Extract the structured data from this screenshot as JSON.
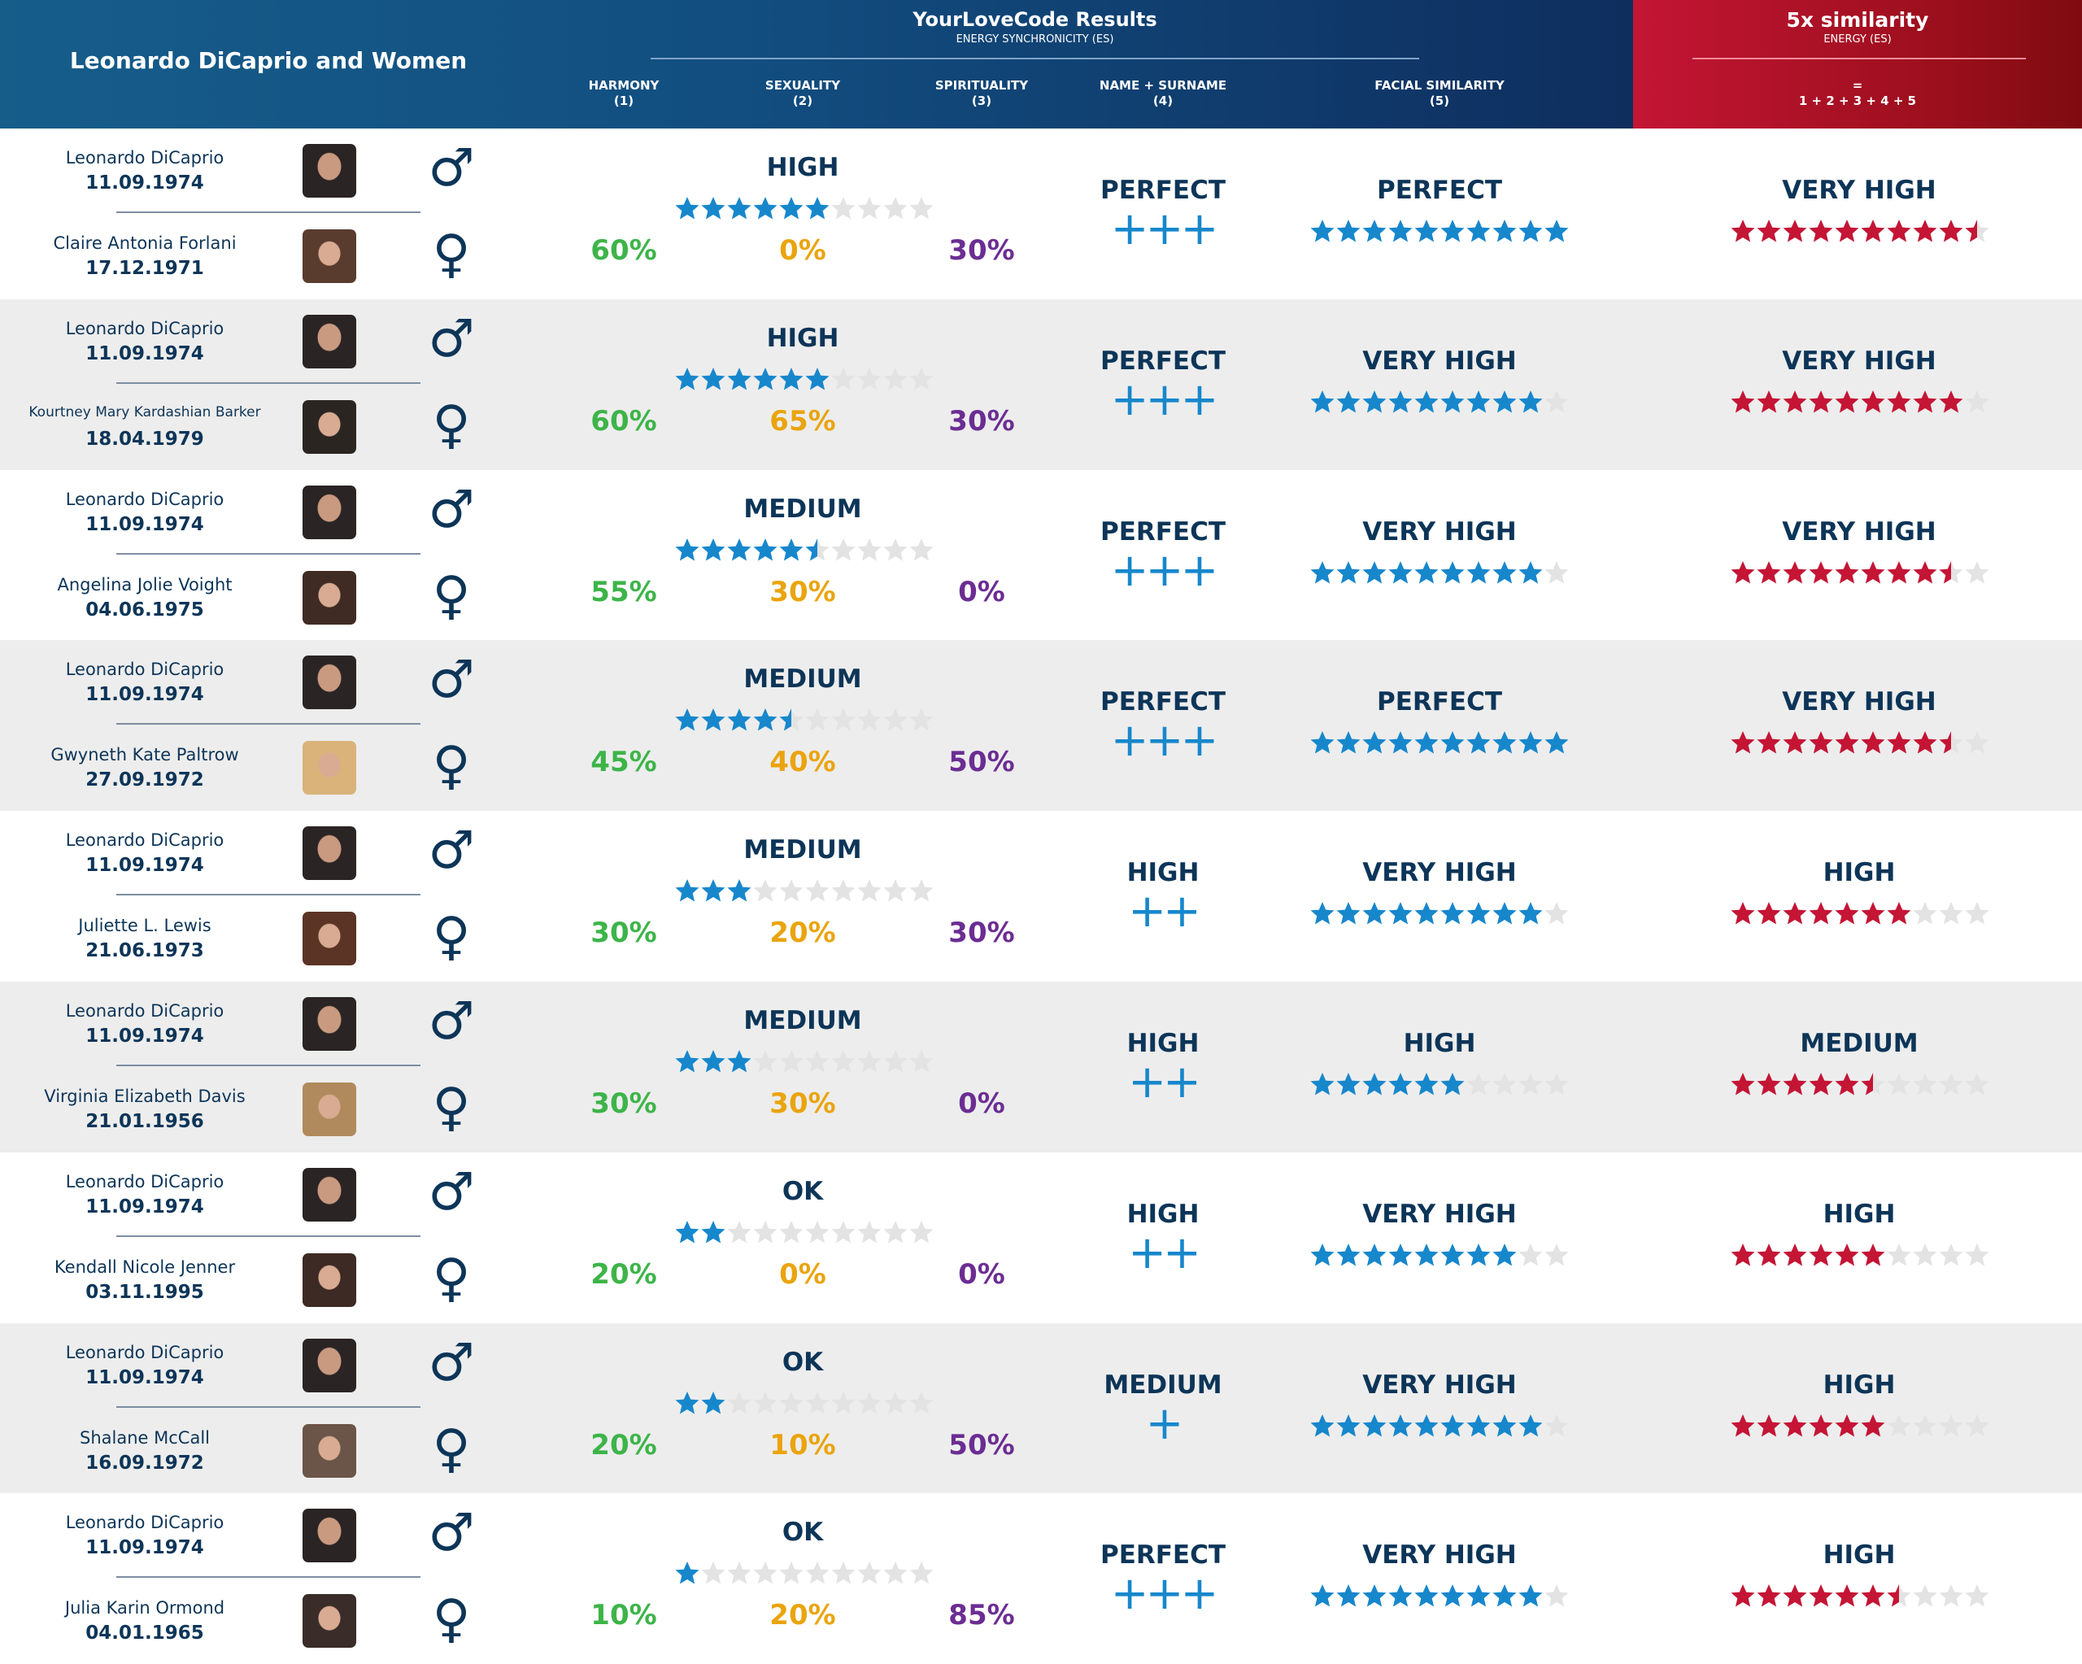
{
  "header": {
    "title": "Leonardo DiCaprio and Women",
    "results_title": "YourLoveCode Results",
    "results_subtitle": "ENERGY SYNCHRONICITY (ES)",
    "columns": [
      {
        "label": "HARMONY",
        "num": "(1)"
      },
      {
        "label": "SEXUALITY",
        "num": "(2)"
      },
      {
        "label": "SPIRITUALITY",
        "num": "(3)"
      },
      {
        "label": "NAME + SURNAME",
        "num": "(4)"
      },
      {
        "label": "FACIAL SIMILARITY",
        "num": "(5)"
      }
    ],
    "similarity_title": "5x similarity",
    "similarity_subtitle": "ENERGY (ES)",
    "similarity_eq": "=",
    "similarity_formula": "1 + 2 + 3 + 4 + 5"
  },
  "colors": {
    "header_blue": "#124e80",
    "header_red": "#b0122a",
    "navy_text": "#0d3558",
    "star_blue": "#1787cc",
    "star_red": "#c41535",
    "star_empty": "#e3e3e3",
    "harmony_green": "#3db449",
    "sexuality_orange": "#eaa40e",
    "spirituality_purple": "#6b2d93",
    "row_alt_bg": "#ededed"
  },
  "icons": {
    "male": "male-symbol-icon",
    "female": "female-symbol-icon",
    "star": "star-icon",
    "plus": "plus-icon"
  },
  "symbols": {
    "male": "♂",
    "female": "♀",
    "plus": "+"
  },
  "rows": [
    {
      "man": {
        "name": "Leonardo DiCaprio",
        "date": "11.09.1974"
      },
      "woman": {
        "name": "Claire Antonia Forlani",
        "date": "17.12.1971",
        "photo": "#5a3c2e"
      },
      "es_level": "HIGH",
      "es_stars": 6,
      "harmony": "60%",
      "sexuality": "0%",
      "spirituality": "30%",
      "name_level": "PERFECT",
      "name_plus": 3,
      "face_level": "PERFECT",
      "face_stars": 10,
      "sim_level": "VERY HIGH",
      "sim_stars": 9.5
    },
    {
      "man": {
        "name": "Leonardo DiCaprio",
        "date": "11.09.1974"
      },
      "woman": {
        "name": "Kourtney Mary Kardashian Barker",
        "date": "18.04.1979",
        "photo": "#2b2522"
      },
      "es_level": "HIGH",
      "es_stars": 6,
      "harmony": "60%",
      "sexuality": "65%",
      "spirituality": "30%",
      "name_level": "PERFECT",
      "name_plus": 3,
      "face_level": "VERY HIGH",
      "face_stars": 9,
      "sim_level": "VERY HIGH",
      "sim_stars": 9
    },
    {
      "man": {
        "name": "Leonardo DiCaprio",
        "date": "11.09.1974"
      },
      "woman": {
        "name": "Angelina Jolie Voight",
        "date": "04.06.1975",
        "photo": "#3f2b24"
      },
      "es_level": "MEDIUM",
      "es_stars": 5.5,
      "harmony": "55%",
      "sexuality": "30%",
      "spirituality": "0%",
      "name_level": "PERFECT",
      "name_plus": 3,
      "face_level": "VERY HIGH",
      "face_stars": 9,
      "sim_level": "VERY HIGH",
      "sim_stars": 8.5
    },
    {
      "man": {
        "name": "Leonardo DiCaprio",
        "date": "11.09.1974"
      },
      "woman": {
        "name": "Gwyneth Kate Paltrow",
        "date": "27.09.1972",
        "photo": "#d9b37a"
      },
      "es_level": "MEDIUM",
      "es_stars": 4.5,
      "harmony": "45%",
      "sexuality": "40%",
      "spirituality": "50%",
      "name_level": "PERFECT",
      "name_plus": 3,
      "face_level": "PERFECT",
      "face_stars": 10,
      "sim_level": "VERY HIGH",
      "sim_stars": 8.5
    },
    {
      "man": {
        "name": "Leonardo DiCaprio",
        "date": "11.09.1974"
      },
      "woman": {
        "name": "Juliette L. Lewis",
        "date": "21.06.1973",
        "photo": "#5b3425"
      },
      "es_level": "MEDIUM",
      "es_stars": 3,
      "harmony": "30%",
      "sexuality": "20%",
      "spirituality": "30%",
      "name_level": "HIGH",
      "name_plus": 2,
      "face_level": "VERY HIGH",
      "face_stars": 9,
      "sim_level": "HIGH",
      "sim_stars": 7
    },
    {
      "man": {
        "name": "Leonardo DiCaprio",
        "date": "11.09.1974"
      },
      "woman": {
        "name": "Virginia Elizabeth Davis",
        "date": "21.01.1956",
        "photo": "#b08a5c"
      },
      "es_level": "MEDIUM",
      "es_stars": 3,
      "harmony": "30%",
      "sexuality": "30%",
      "spirituality": "0%",
      "name_level": "HIGH",
      "name_plus": 2,
      "face_level": "HIGH",
      "face_stars": 6,
      "sim_level": "MEDIUM",
      "sim_stars": 5.5
    },
    {
      "man": {
        "name": "Leonardo DiCaprio",
        "date": "11.09.1974"
      },
      "woman": {
        "name": "Kendall Nicole Jenner",
        "date": "03.11.1995",
        "photo": "#3d2a24"
      },
      "es_level": "OK",
      "es_stars": 2,
      "harmony": "20%",
      "sexuality": "0%",
      "spirituality": "0%",
      "name_level": "HIGH",
      "name_plus": 2,
      "face_level": "VERY HIGH",
      "face_stars": 8,
      "sim_level": "HIGH",
      "sim_stars": 6
    },
    {
      "man": {
        "name": "Leonardo DiCaprio",
        "date": "11.09.1974"
      },
      "woman": {
        "name": "Shalane McCall",
        "date": "16.09.1972",
        "photo": "#6b5548"
      },
      "es_level": "OK",
      "es_stars": 2,
      "harmony": "20%",
      "sexuality": "10%",
      "spirituality": "50%",
      "name_level": "MEDIUM",
      "name_plus": 1,
      "face_level": "VERY HIGH",
      "face_stars": 9,
      "sim_level": "HIGH",
      "sim_stars": 6
    },
    {
      "man": {
        "name": "Leonardo DiCaprio",
        "date": "11.09.1974"
      },
      "woman": {
        "name": "Julia Karin Ormond",
        "date": "04.01.1965",
        "photo": "#3a2c28"
      },
      "es_level": "OK",
      "es_stars": 1,
      "harmony": "10%",
      "sexuality": "20%",
      "spirituality": "85%",
      "name_level": "PERFECT",
      "name_plus": 3,
      "face_level": "VERY HIGH",
      "face_stars": 9,
      "sim_level": "HIGH",
      "sim_stars": 6.5
    }
  ]
}
